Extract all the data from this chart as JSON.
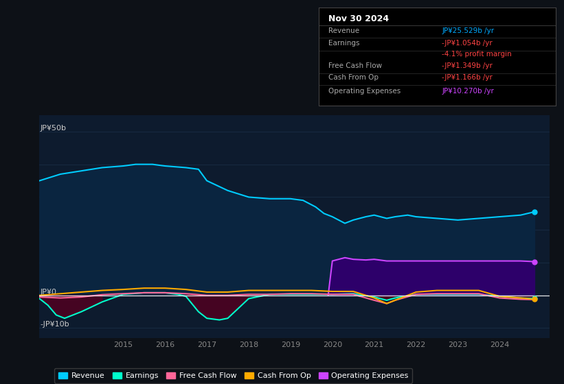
{
  "bg_color": "#0d1117",
  "plot_bg_color": "#0d1b2e",
  "grid_color": "#1a2d45",
  "title_box": {
    "date": "Nov 30 2024",
    "rows": [
      {
        "label": "Revenue",
        "value": "JP¥25.529b /yr",
        "value_color": "#00aaff"
      },
      {
        "label": "Earnings",
        "value": "-JP¥1.054b /yr",
        "value_color": "#ff4444"
      },
      {
        "label": "",
        "value": "-4.1% profit margin",
        "value_color": "#ff4444"
      },
      {
        "label": "Free Cash Flow",
        "value": "-JP¥1.349b /yr",
        "value_color": "#ff4444"
      },
      {
        "label": "Cash From Op",
        "value": "-JP¥1.166b /yr",
        "value_color": "#ff4444"
      },
      {
        "label": "Operating Expenses",
        "value": "JP¥10.270b /yr",
        "value_color": "#cc44ff"
      }
    ]
  },
  "ylabel_top": "JP¥50b",
  "ylabel_zero": "JP¥0",
  "ylabel_neg": "-JP¥10b",
  "x_ticks": [
    2015,
    2016,
    2017,
    2018,
    2019,
    2020,
    2021,
    2022,
    2023,
    2024
  ],
  "ylim": [
    -13,
    55
  ],
  "revenue": {
    "x": [
      2013.0,
      2013.5,
      2014.0,
      2014.5,
      2015.0,
      2015.3,
      2015.7,
      2016.0,
      2016.5,
      2016.8,
      2017.0,
      2017.5,
      2018.0,
      2018.5,
      2019.0,
      2019.3,
      2019.6,
      2019.8,
      2020.0,
      2020.3,
      2020.5,
      2020.8,
      2021.0,
      2021.3,
      2021.5,
      2021.8,
      2022.0,
      2022.5,
      2023.0,
      2023.5,
      2024.0,
      2024.5,
      2024.83
    ],
    "y": [
      35,
      37,
      38,
      39,
      39.5,
      40,
      40,
      39.5,
      39,
      38.5,
      35,
      32,
      30,
      29.5,
      29.5,
      29,
      27,
      25,
      24,
      22,
      23,
      24,
      24.5,
      23.5,
      24,
      24.5,
      24,
      23.5,
      23,
      23.5,
      24,
      24.5,
      25.5
    ],
    "color": "#00ccff",
    "fill_color": "#0a2540",
    "lw": 1.5
  },
  "earnings": {
    "x": [
      2013.0,
      2013.2,
      2013.4,
      2013.6,
      2014.0,
      2014.5,
      2015.0,
      2015.5,
      2016.0,
      2016.3,
      2016.5,
      2016.8,
      2017.0,
      2017.3,
      2017.5,
      2018.0,
      2018.5,
      2019.0,
      2019.5,
      2020.0,
      2020.5,
      2021.0,
      2021.3,
      2021.5,
      2022.0,
      2022.5,
      2023.0,
      2023.5,
      2024.0,
      2024.5,
      2024.83
    ],
    "y": [
      -1,
      -3,
      -6,
      -7,
      -5,
      -2,
      0.3,
      0.8,
      0.8,
      0.3,
      -0.3,
      -5,
      -7,
      -7.5,
      -7,
      -1,
      0.3,
      0.3,
      0.3,
      0.3,
      0.5,
      -0.5,
      -1.5,
      -0.8,
      0.3,
      0.3,
      0.3,
      0.3,
      -0.3,
      -0.8,
      -1.0
    ],
    "color": "#00ffcc",
    "fill_color": "#500020",
    "lw": 1.5
  },
  "free_cash_flow": {
    "x": [
      2013.0,
      2013.5,
      2014.0,
      2014.5,
      2015.0,
      2015.5,
      2016.0,
      2016.5,
      2017.0,
      2017.5,
      2018.0,
      2018.5,
      2019.0,
      2019.5,
      2020.0,
      2020.5,
      2021.0,
      2021.3,
      2021.5,
      2022.0,
      2022.5,
      2023.0,
      2023.5,
      2024.0,
      2024.5,
      2024.83
    ],
    "y": [
      -0.5,
      -0.8,
      -0.5,
      0.2,
      0.5,
      0.8,
      0.8,
      0.5,
      0,
      0,
      0.3,
      0.3,
      0.5,
      0.5,
      0.3,
      0.3,
      -1.5,
      -2.5,
      -1.5,
      0.3,
      0.5,
      0.5,
      0.5,
      -0.8,
      -1.2,
      -1.3
    ],
    "color": "#ff6699",
    "lw": 1.5
  },
  "cash_from_op": {
    "x": [
      2013.0,
      2013.5,
      2014.0,
      2014.5,
      2015.0,
      2015.5,
      2016.0,
      2016.5,
      2017.0,
      2017.5,
      2018.0,
      2018.5,
      2019.0,
      2019.5,
      2020.0,
      2020.5,
      2021.0,
      2021.3,
      2021.5,
      2022.0,
      2022.5,
      2023.0,
      2023.5,
      2024.0,
      2024.5,
      2024.83
    ],
    "y": [
      0,
      0.5,
      1,
      1.5,
      1.8,
      2.2,
      2.2,
      1.8,
      1,
      1,
      1.5,
      1.5,
      1.5,
      1.5,
      1.2,
      1.2,
      -0.8,
      -2.5,
      -1.5,
      1.0,
      1.5,
      1.5,
      1.5,
      -0.3,
      -0.8,
      -1.2
    ],
    "color": "#ffaa00",
    "lw": 1.5
  },
  "op_expenses": {
    "x": [
      2019.9,
      2020.0,
      2020.3,
      2020.5,
      2020.8,
      2021.0,
      2021.3,
      2021.5,
      2021.8,
      2022.0,
      2022.5,
      2023.0,
      2023.5,
      2024.0,
      2024.5,
      2024.83
    ],
    "y": [
      0,
      10.5,
      11.5,
      11.0,
      10.8,
      11.0,
      10.5,
      10.5,
      10.5,
      10.5,
      10.5,
      10.5,
      10.5,
      10.5,
      10.5,
      10.3
    ],
    "color": "#cc44ff",
    "fill_color": "#2d006a",
    "lw": 1.5
  },
  "legend": [
    {
      "label": "Revenue",
      "color": "#00ccff"
    },
    {
      "label": "Earnings",
      "color": "#00ffcc"
    },
    {
      "label": "Free Cash Flow",
      "color": "#ff6699"
    },
    {
      "label": "Cash From Op",
      "color": "#ffaa00"
    },
    {
      "label": "Operating Expenses",
      "color": "#cc44ff"
    }
  ]
}
